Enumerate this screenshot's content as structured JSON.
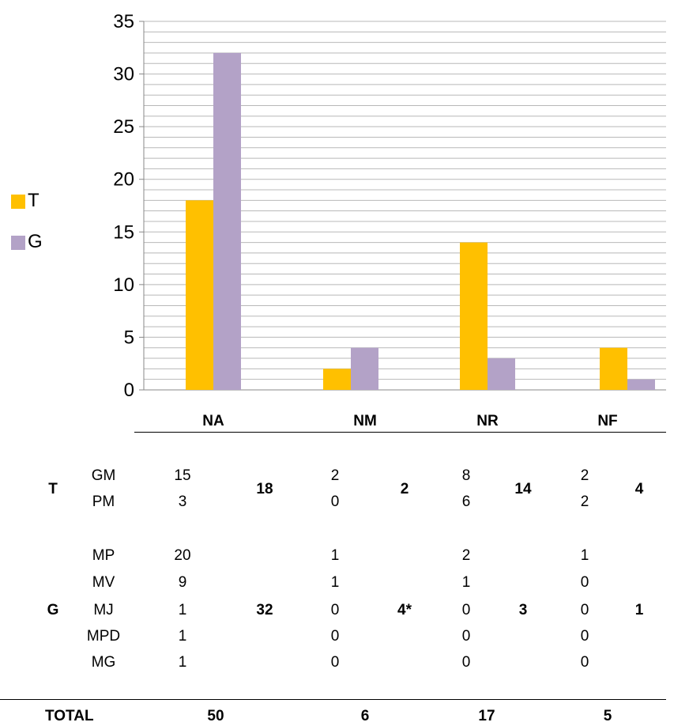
{
  "chart_data": {
    "type": "bar",
    "categories": [
      "NA",
      "NM",
      "NR",
      "NF"
    ],
    "series": [
      {
        "name": "T",
        "values": [
          18,
          2,
          14,
          4
        ],
        "color": "#FFC000"
      },
      {
        "name": "G",
        "values": [
          32,
          4,
          3,
          1
        ],
        "color": "#B3A2C7"
      }
    ],
    "ylim": [
      0,
      35
    ],
    "yticks": [
      0,
      5,
      10,
      15,
      20,
      25,
      30,
      35
    ],
    "grid": true,
    "legend_placement": "left",
    "title": "",
    "xlabel": "",
    "ylabel": ""
  },
  "table": {
    "groups": [
      {
        "label": "T",
        "rows": [
          {
            "label": "GM",
            "values": [
              "15",
              "2",
              "8",
              "2"
            ]
          },
          {
            "label": "PM",
            "values": [
              "3",
              "0",
              "6",
              "2"
            ]
          }
        ],
        "totals": [
          "18",
          "2",
          "14",
          "4"
        ]
      },
      {
        "label": "G",
        "rows": [
          {
            "label": "MP",
            "values": [
              "20",
              "1",
              "2",
              "1"
            ]
          },
          {
            "label": "MV",
            "values": [
              "9",
              "1",
              "1",
              "0"
            ]
          },
          {
            "label": "MJ",
            "values": [
              "1",
              "0",
              "0",
              "0"
            ]
          },
          {
            "label": "MPD",
            "values": [
              "1",
              "0",
              "0",
              "0"
            ]
          },
          {
            "label": "MG",
            "values": [
              "1",
              "0",
              "0",
              "0"
            ]
          }
        ],
        "totals": [
          "32",
          "4*",
          "3",
          "1"
        ]
      }
    ],
    "total_label": "TOTAL",
    "totals": [
      "50",
      "6",
      "17",
      "5"
    ]
  }
}
